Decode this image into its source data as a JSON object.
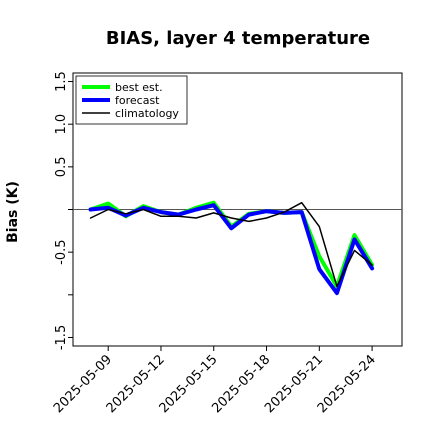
{
  "chart_data": {
    "type": "line",
    "title": "BIAS, layer 4 temperature",
    "xlabel": "",
    "ylabel": "Bias (K)",
    "x_tick_labels": [
      "2025-05-09",
      "2025-05-12",
      "2025-05-15",
      "2025-05-18",
      "2025-05-21",
      "2025-05-24"
    ],
    "x_tick_positions": [
      2,
      5,
      8,
      11,
      14,
      17
    ],
    "highlighted_tick": "2025-05-15",
    "highlight_color": "#008000",
    "y_ticks": [
      -1.5,
      -1.0,
      -0.5,
      0.0,
      0.5,
      1.0,
      1.5
    ],
    "y_tick_labels": [
      "-1.5",
      "",
      "-0.5",
      "",
      "0.5",
      "1.0",
      "1.5"
    ],
    "xlim": [
      0,
      18.7
    ],
    "ylim": [
      -1.6,
      1.6
    ],
    "reference_line": 0.0,
    "legend_position": "top-left",
    "series": [
      {
        "name": "best est.",
        "color": "#00ff00",
        "linewidth": 4,
        "x": [
          1,
          2,
          3,
          4,
          5,
          6,
          7,
          8,
          9,
          10,
          11,
          12,
          13,
          14,
          15,
          16,
          17
        ],
        "values": [
          0.0,
          0.07,
          -0.08,
          0.04,
          -0.03,
          -0.06,
          0.02,
          0.08,
          -0.2,
          -0.05,
          -0.02,
          -0.04,
          -0.03,
          -0.55,
          -0.9,
          -0.3,
          -0.65
        ]
      },
      {
        "name": "forecast",
        "color": "#0000ff",
        "linewidth": 4,
        "x": [
          1,
          2,
          3,
          4,
          5,
          6,
          7,
          8,
          9,
          10,
          11,
          12,
          13,
          14,
          15,
          16,
          17
        ],
        "values": [
          0.0,
          0.02,
          -0.07,
          0.02,
          -0.03,
          -0.06,
          0.0,
          0.05,
          -0.22,
          -0.06,
          -0.02,
          -0.04,
          -0.03,
          -0.7,
          -0.98,
          -0.35,
          -0.69
        ]
      },
      {
        "name": "climatology",
        "color": "#000000",
        "linewidth": 1.5,
        "x": [
          1,
          2,
          3,
          4,
          5,
          6,
          7,
          8,
          9,
          10,
          11,
          12,
          13,
          14,
          15,
          16,
          17
        ],
        "values": [
          -0.1,
          0.0,
          -0.05,
          0.0,
          -0.08,
          -0.08,
          -0.1,
          -0.04,
          -0.1,
          -0.14,
          -0.1,
          -0.03,
          0.08,
          -0.2,
          -0.9,
          -0.48,
          -0.65
        ]
      }
    ]
  }
}
